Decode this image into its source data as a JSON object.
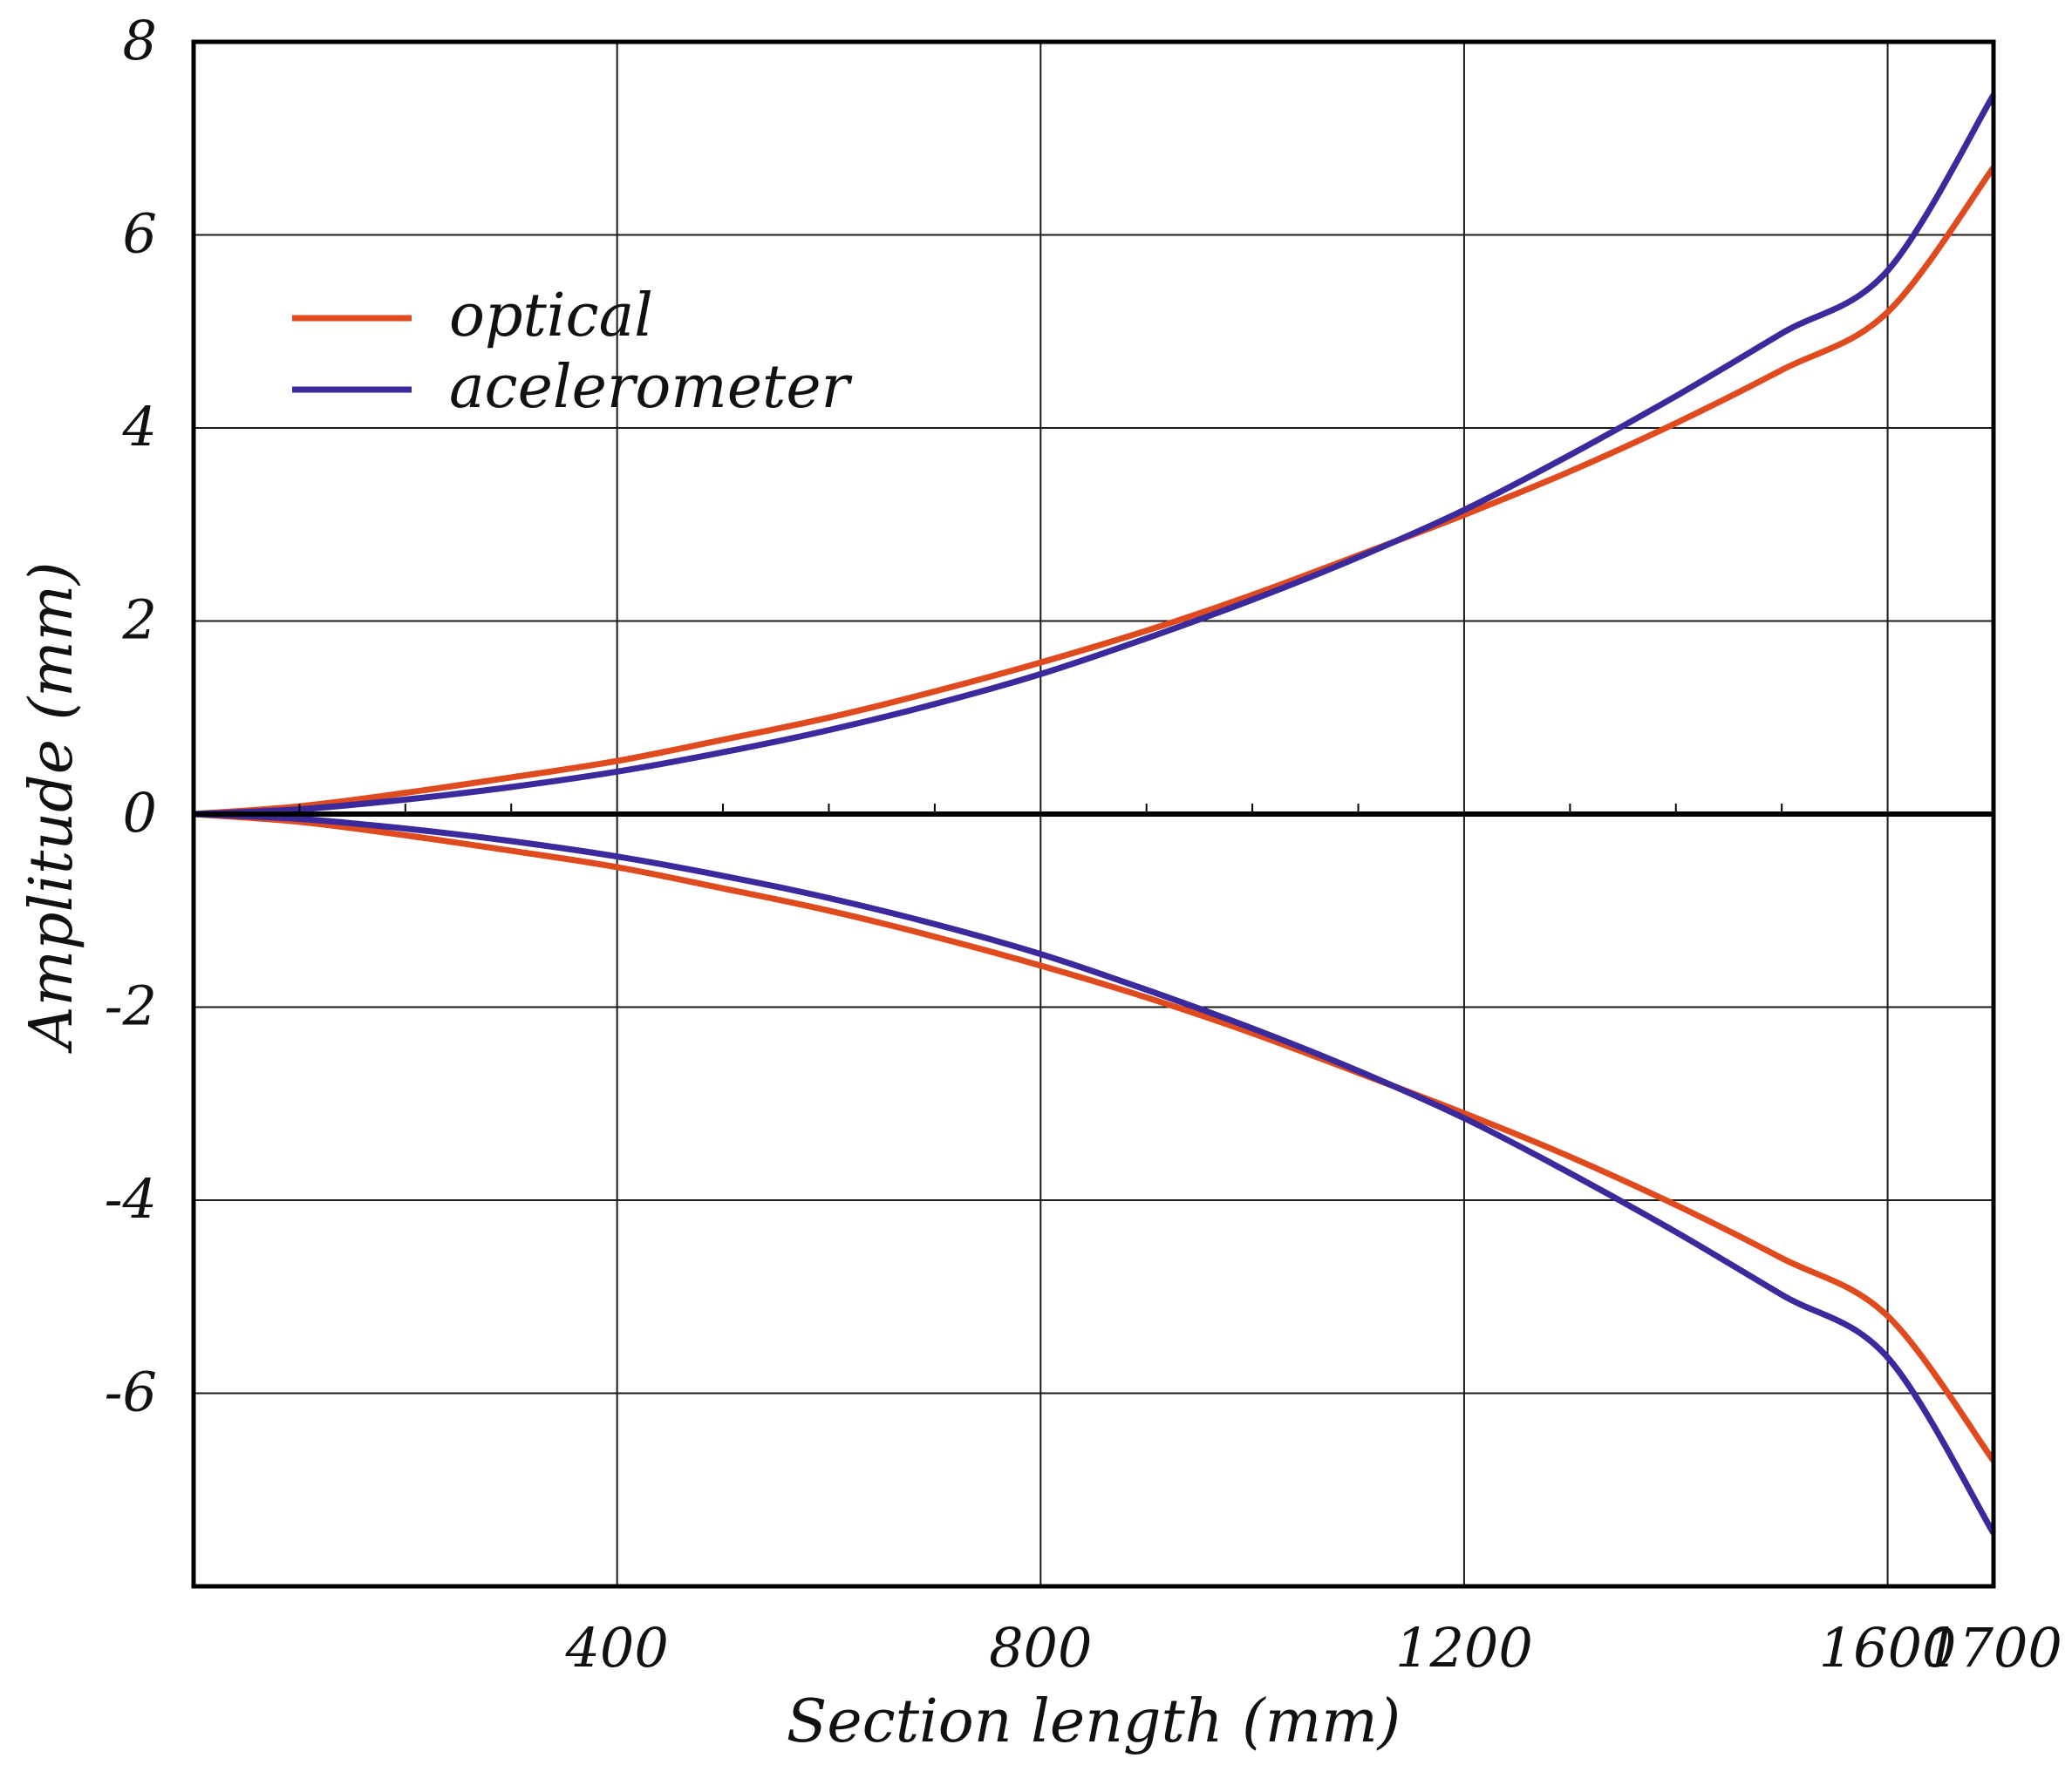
{
  "chart_data": {
    "type": "line",
    "title": "",
    "xlabel": "Section length (mm)",
    "ylabel": "Amplitude (mm)",
    "xlim": [
      0,
      1700
    ],
    "ylim": [
      -8,
      8
    ],
    "grid": true,
    "legend_position": "top-left",
    "x_ticks": [
      400,
      800,
      1200,
      1600,
      1700
    ],
    "x_tick_labels": [
      "400",
      "800",
      "1200",
      "1600",
      "1700"
    ],
    "x_minor_ticks": [
      100,
      200,
      300,
      500,
      600,
      700,
      900,
      1000,
      1100,
      1300,
      1400,
      1500,
      1700
    ],
    "y_ticks": [
      8,
      6,
      4,
      2,
      0,
      -2,
      -4,
      -6
    ],
    "y_tick_labels": [
      "8",
      "6",
      "4",
      "2",
      "0",
      "-2",
      "-4",
      "-6"
    ],
    "x": [
      0,
      100,
      200,
      300,
      400,
      500,
      600,
      700,
      800,
      900,
      1000,
      1100,
      1200,
      1300,
      1400,
      1500,
      1600,
      1700
    ],
    "series": [
      {
        "name": "optical",
        "color": "#e04a1f",
        "upper": [
          0,
          0.08,
          0.22,
          0.38,
          0.55,
          0.77,
          1.0,
          1.27,
          1.57,
          1.9,
          2.27,
          2.68,
          3.1,
          3.55,
          4.05,
          4.6,
          5.2,
          6.7
        ],
        "lower": [
          0,
          -0.08,
          -0.22,
          -0.38,
          -0.55,
          -0.77,
          -1.0,
          -1.27,
          -1.57,
          -1.9,
          -2.27,
          -2.68,
          -3.1,
          -3.55,
          -4.05,
          -4.6,
          -5.2,
          -6.7
        ]
      },
      {
        "name": "acelerometer",
        "color": "#3a2a9c",
        "upper": [
          0,
          0.05,
          0.15,
          0.28,
          0.44,
          0.64,
          0.87,
          1.14,
          1.45,
          1.82,
          2.22,
          2.66,
          3.15,
          3.72,
          4.33,
          4.98,
          5.63,
          7.45
        ],
        "lower": [
          0,
          -0.05,
          -0.15,
          -0.28,
          -0.44,
          -0.64,
          -0.87,
          -1.14,
          -1.45,
          -1.82,
          -2.22,
          -2.66,
          -3.15,
          -3.72,
          -4.33,
          -4.98,
          -5.63,
          -7.45
        ]
      }
    ]
  }
}
